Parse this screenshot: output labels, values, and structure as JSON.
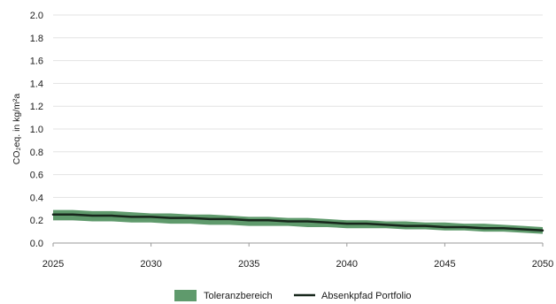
{
  "chart_data": {
    "type": "area",
    "title": "",
    "xlabel": "",
    "ylabel": "CO₂eq. in kg/m²a",
    "xlim": [
      2025,
      2050
    ],
    "ylim": [
      0,
      2.0
    ],
    "x_ticks": [
      "2025",
      "2030",
      "2035",
      "2040",
      "2045",
      "2050"
    ],
    "y_ticks": [
      "0.0",
      "0.2",
      "0.4",
      "0.6",
      "0.8",
      "1.0",
      "1.2",
      "1.4",
      "1.6",
      "1.8",
      "2.0"
    ],
    "grid": "horizontal",
    "legend_placement": "bottom-center",
    "x": [
      2025,
      2026,
      2027,
      2028,
      2029,
      2030,
      2031,
      2032,
      2033,
      2034,
      2035,
      2036,
      2037,
      2038,
      2039,
      2040,
      2041,
      2042,
      2043,
      2044,
      2045,
      2046,
      2047,
      2048,
      2049,
      2050
    ],
    "series": [
      {
        "name": "Toleranzbereich",
        "kind": "band",
        "color": "#5f9a6c",
        "lower": [
          0.2,
          0.2,
          0.19,
          0.19,
          0.18,
          0.18,
          0.17,
          0.17,
          0.16,
          0.16,
          0.15,
          0.15,
          0.15,
          0.14,
          0.14,
          0.13,
          0.13,
          0.13,
          0.12,
          0.12,
          0.11,
          0.11,
          0.1,
          0.1,
          0.09,
          0.08
        ],
        "upper": [
          0.29,
          0.29,
          0.28,
          0.28,
          0.27,
          0.26,
          0.26,
          0.25,
          0.25,
          0.24,
          0.23,
          0.23,
          0.22,
          0.22,
          0.21,
          0.2,
          0.2,
          0.19,
          0.19,
          0.18,
          0.18,
          0.17,
          0.17,
          0.16,
          0.15,
          0.14
        ]
      },
      {
        "name": "Absenkpfad Portfolio",
        "kind": "line",
        "color": "#17261b",
        "values": [
          0.25,
          0.25,
          0.24,
          0.24,
          0.23,
          0.23,
          0.22,
          0.22,
          0.21,
          0.21,
          0.2,
          0.2,
          0.19,
          0.19,
          0.18,
          0.17,
          0.17,
          0.16,
          0.15,
          0.15,
          0.14,
          0.14,
          0.13,
          0.13,
          0.12,
          0.11
        ]
      }
    ]
  }
}
